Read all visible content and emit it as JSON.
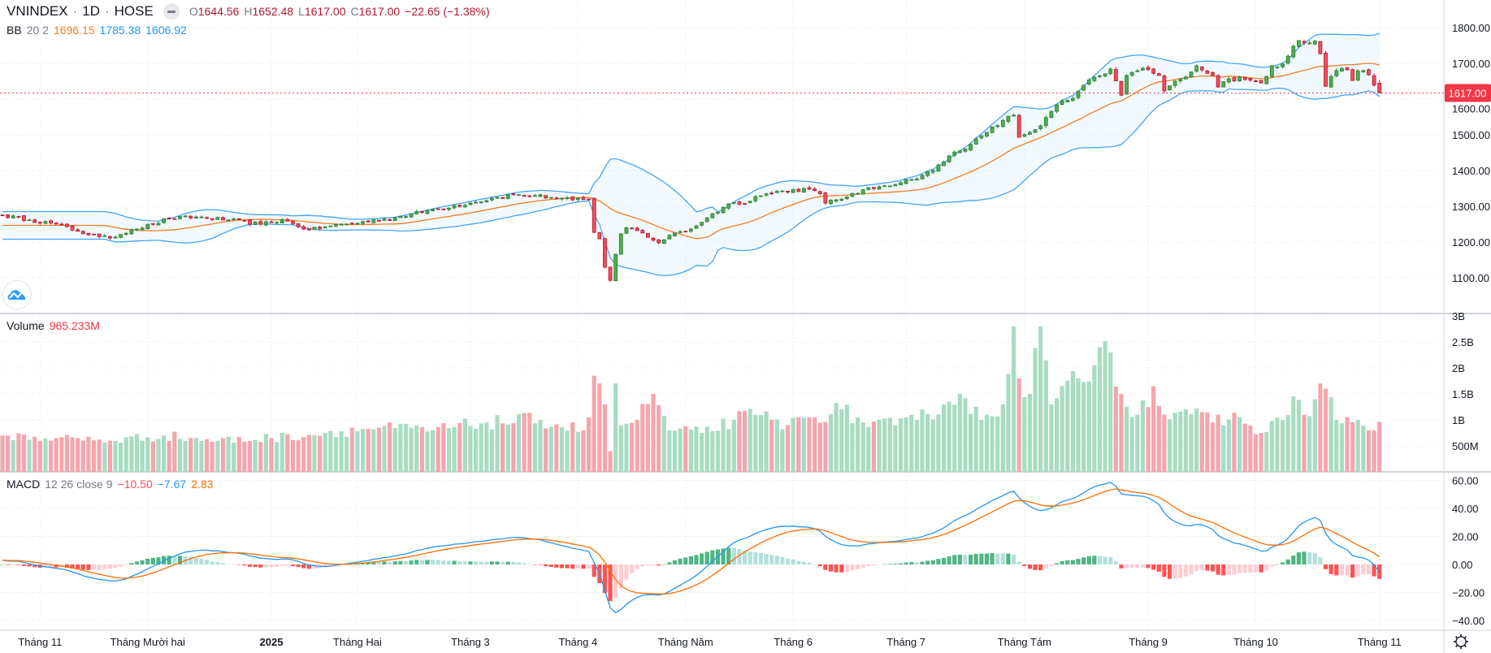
{
  "header": {
    "symbol": "VNINDEX",
    "sep": "·",
    "interval": "1D",
    "exchange": "HOSE",
    "o_label": "O",
    "o": "1644.56",
    "h_label": "H",
    "h": "1652.48",
    "l_label": "L",
    "l": "1617.00",
    "c_label": "C",
    "c": "1617.00",
    "change": "−22.65 (−1.38%)"
  },
  "bb_legend": {
    "name": "BB",
    "params": "20 2",
    "basis": "1696.15",
    "upper": "1785.38",
    "lower": "1606.92"
  },
  "volume_legend": {
    "name": "Volume",
    "value": "965.233M"
  },
  "macd_legend": {
    "name": "MACD",
    "params": "12 26 close 9",
    "hist": "−10.50",
    "macd": "−7.67",
    "signal": "2.83"
  },
  "last_price_tag": "1617.00",
  "colors": {
    "up": "#4caf50",
    "up_border": "#2e7d32",
    "down": "#ef4f5b",
    "down_border": "#b2182b",
    "vol_up": "#a8dcc2",
    "vol_down": "#f4a6ad",
    "bb_band": "#42a5f5",
    "bb_basis": "#f57c1f",
    "macd": "#2196f3",
    "signal": "#ff6d00",
    "hist_up_strong": "#4fb585",
    "hist_up_weak": "#b2dfdb",
    "hist_down_weak": "#ffcdd2",
    "hist_down_strong": "#ff5252",
    "last_price": "#f23645"
  },
  "chart_data": {
    "type": "candlestick",
    "symbol": "VNINDEX",
    "bar_count": 257,
    "close_keypoints": [
      [
        0,
        1275
      ],
      [
        5,
        1262
      ],
      [
        10,
        1250
      ],
      [
        14,
        1230
      ],
      [
        18,
        1215
      ],
      [
        20,
        1211
      ],
      [
        24,
        1235
      ],
      [
        28,
        1250
      ],
      [
        31,
        1266
      ],
      [
        36,
        1270
      ],
      [
        42,
        1262
      ],
      [
        48,
        1250
      ],
      [
        52,
        1262
      ],
      [
        57,
        1234
      ],
      [
        61,
        1245
      ],
      [
        65,
        1252
      ],
      [
        73,
        1268
      ],
      [
        80,
        1291
      ],
      [
        87,
        1309
      ],
      [
        92,
        1325
      ],
      [
        95,
        1332
      ],
      [
        99,
        1330
      ],
      [
        102,
        1325
      ],
      [
        106,
        1318
      ],
      [
        109,
        1320
      ],
      [
        110,
        1227
      ],
      [
        111,
        1209
      ],
      [
        112,
        1130
      ],
      [
        113,
        1093
      ],
      [
        114,
        1166
      ],
      [
        115,
        1223
      ],
      [
        116,
        1240
      ],
      [
        119,
        1225
      ],
      [
        122,
        1198
      ],
      [
        125,
        1225
      ],
      [
        128,
        1236
      ],
      [
        131,
        1268
      ],
      [
        135,
        1307
      ],
      [
        139,
        1314
      ],
      [
        140,
        1327
      ],
      [
        145,
        1343
      ],
      [
        150,
        1348
      ],
      [
        152,
        1335
      ],
      [
        153,
        1309
      ],
      [
        156,
        1320
      ],
      [
        158,
        1336
      ],
      [
        163,
        1355
      ],
      [
        169,
        1375
      ],
      [
        173,
        1400
      ],
      [
        177,
        1452
      ],
      [
        180,
        1473
      ],
      [
        183,
        1507
      ],
      [
        186,
        1540
      ],
      [
        188,
        1555
      ],
      [
        189,
        1493
      ],
      [
        193,
        1525
      ],
      [
        196,
        1584
      ],
      [
        199,
        1602
      ],
      [
        201,
        1639
      ],
      [
        204,
        1665
      ],
      [
        206,
        1684
      ],
      [
        208,
        1611
      ],
      [
        209,
        1666
      ],
      [
        212,
        1686
      ],
      [
        215,
        1666
      ],
      [
        216,
        1623
      ],
      [
        219,
        1657
      ],
      [
        222,
        1693
      ],
      [
        225,
        1666
      ],
      [
        226,
        1634
      ],
      [
        228,
        1657
      ],
      [
        231,
        1655
      ],
      [
        234,
        1645
      ],
      [
        236,
        1693
      ],
      [
        238,
        1698
      ],
      [
        240,
        1748
      ],
      [
        241,
        1764
      ],
      [
        242,
        1757
      ],
      [
        243,
        1757
      ],
      [
        244,
        1762
      ],
      [
        245,
        1727
      ],
      [
        246,
        1636
      ],
      [
        247,
        1663
      ],
      [
        248,
        1680
      ],
      [
        249,
        1686
      ],
      [
        250,
        1682
      ],
      [
        251,
        1652
      ],
      [
        252,
        1679
      ],
      [
        253,
        1680
      ],
      [
        254,
        1668
      ],
      [
        255,
        1639
      ],
      [
        256,
        1617
      ]
    ],
    "last_bar": {
      "open": 1644.56,
      "high": 1652.48,
      "low": 1617.0,
      "close": 1617.0
    },
    "volume_keypoints_millions": [
      [
        0,
        700
      ],
      [
        10,
        650
      ],
      [
        20,
        600
      ],
      [
        30,
        700
      ],
      [
        40,
        600
      ],
      [
        50,
        650
      ],
      [
        60,
        750
      ],
      [
        70,
        850
      ],
      [
        80,
        800
      ],
      [
        90,
        950
      ],
      [
        100,
        1000
      ],
      [
        108,
        800
      ],
      [
        109,
        1050
      ],
      [
        110,
        1850
      ],
      [
        111,
        1700
      ],
      [
        112,
        1300
      ],
      [
        113,
        400
      ],
      [
        114,
        1700
      ],
      [
        115,
        900
      ],
      [
        118,
        1000
      ],
      [
        121,
        1500
      ],
      [
        124,
        800
      ],
      [
        130,
        750
      ],
      [
        136,
        1000
      ],
      [
        140,
        1100
      ],
      [
        146,
        900
      ],
      [
        150,
        1050
      ],
      [
        156,
        1200
      ],
      [
        160,
        950
      ],
      [
        166,
        900
      ],
      [
        170,
        1000
      ],
      [
        175,
        1300
      ],
      [
        178,
        1500
      ],
      [
        182,
        1000
      ],
      [
        186,
        1300
      ],
      [
        188,
        2800
      ],
      [
        189,
        1800
      ],
      [
        191,
        1500
      ],
      [
        193,
        2800
      ],
      [
        195,
        1300
      ],
      [
        200,
        1800
      ],
      [
        203,
        2050
      ],
      [
        204,
        2400
      ],
      [
        206,
        2300
      ],
      [
        208,
        1500
      ],
      [
        211,
        1100
      ],
      [
        214,
        1650
      ],
      [
        216,
        1100
      ],
      [
        220,
        1200
      ],
      [
        225,
        950
      ],
      [
        230,
        1050
      ],
      [
        234,
        750
      ],
      [
        238,
        1000
      ],
      [
        240,
        1450
      ],
      [
        242,
        1100
      ],
      [
        244,
        1400
      ],
      [
        245,
        1700
      ],
      [
        246,
        1600
      ],
      [
        248,
        1000
      ],
      [
        252,
        1000
      ],
      [
        254,
        800
      ],
      [
        255,
        800
      ],
      [
        256,
        965
      ]
    ],
    "indicators": {
      "bollinger": {
        "length": 20,
        "mult": 2
      },
      "macd": {
        "fast": 12,
        "slow": 26,
        "signal": 9
      }
    },
    "price_axis": {
      "range": [
        1060,
        1880
      ],
      "ticks": [
        "1800.00",
        "1700.00",
        "1600.00",
        "1500.00",
        "1400.00",
        "1300.00",
        "1200.00",
        "1100.00"
      ],
      "tick_values": [
        1800,
        1700,
        1600,
        1500,
        1400,
        1300,
        1200,
        1100
      ]
    },
    "volume_axis": {
      "ticks": [
        "3B",
        "2.5B",
        "2B",
        "1.5B",
        "1B",
        "500M"
      ],
      "tick_values": [
        3000,
        2500,
        2000,
        1500,
        1000,
        500
      ]
    },
    "macd_axis": {
      "ticks": [
        "60.00",
        "40.00",
        "20.00",
        "0.00",
        "−20.00",
        "−40.00"
      ],
      "tick_values": [
        60,
        40,
        20,
        0,
        -20,
        -40
      ]
    },
    "time_axis": [
      {
        "label": "Tháng 11",
        "index": 7
      },
      {
        "label": "Tháng Mười hai",
        "index": 27
      },
      {
        "label": "2025",
        "index": 50
      },
      {
        "label": "Tháng Hai",
        "index": 66
      },
      {
        "label": "Tháng 3",
        "index": 87
      },
      {
        "label": "Tháng 4",
        "index": 107
      },
      {
        "label": "Tháng Năm",
        "index": 127
      },
      {
        "label": "Tháng 6",
        "index": 147
      },
      {
        "label": "Tháng 7",
        "index": 168
      },
      {
        "label": "Tháng Tám",
        "index": 190
      },
      {
        "label": "Tháng 9",
        "index": 213
      },
      {
        "label": "Tháng 10",
        "index": 233
      },
      {
        "label": "Tháng 11",
        "index": 256
      }
    ]
  }
}
